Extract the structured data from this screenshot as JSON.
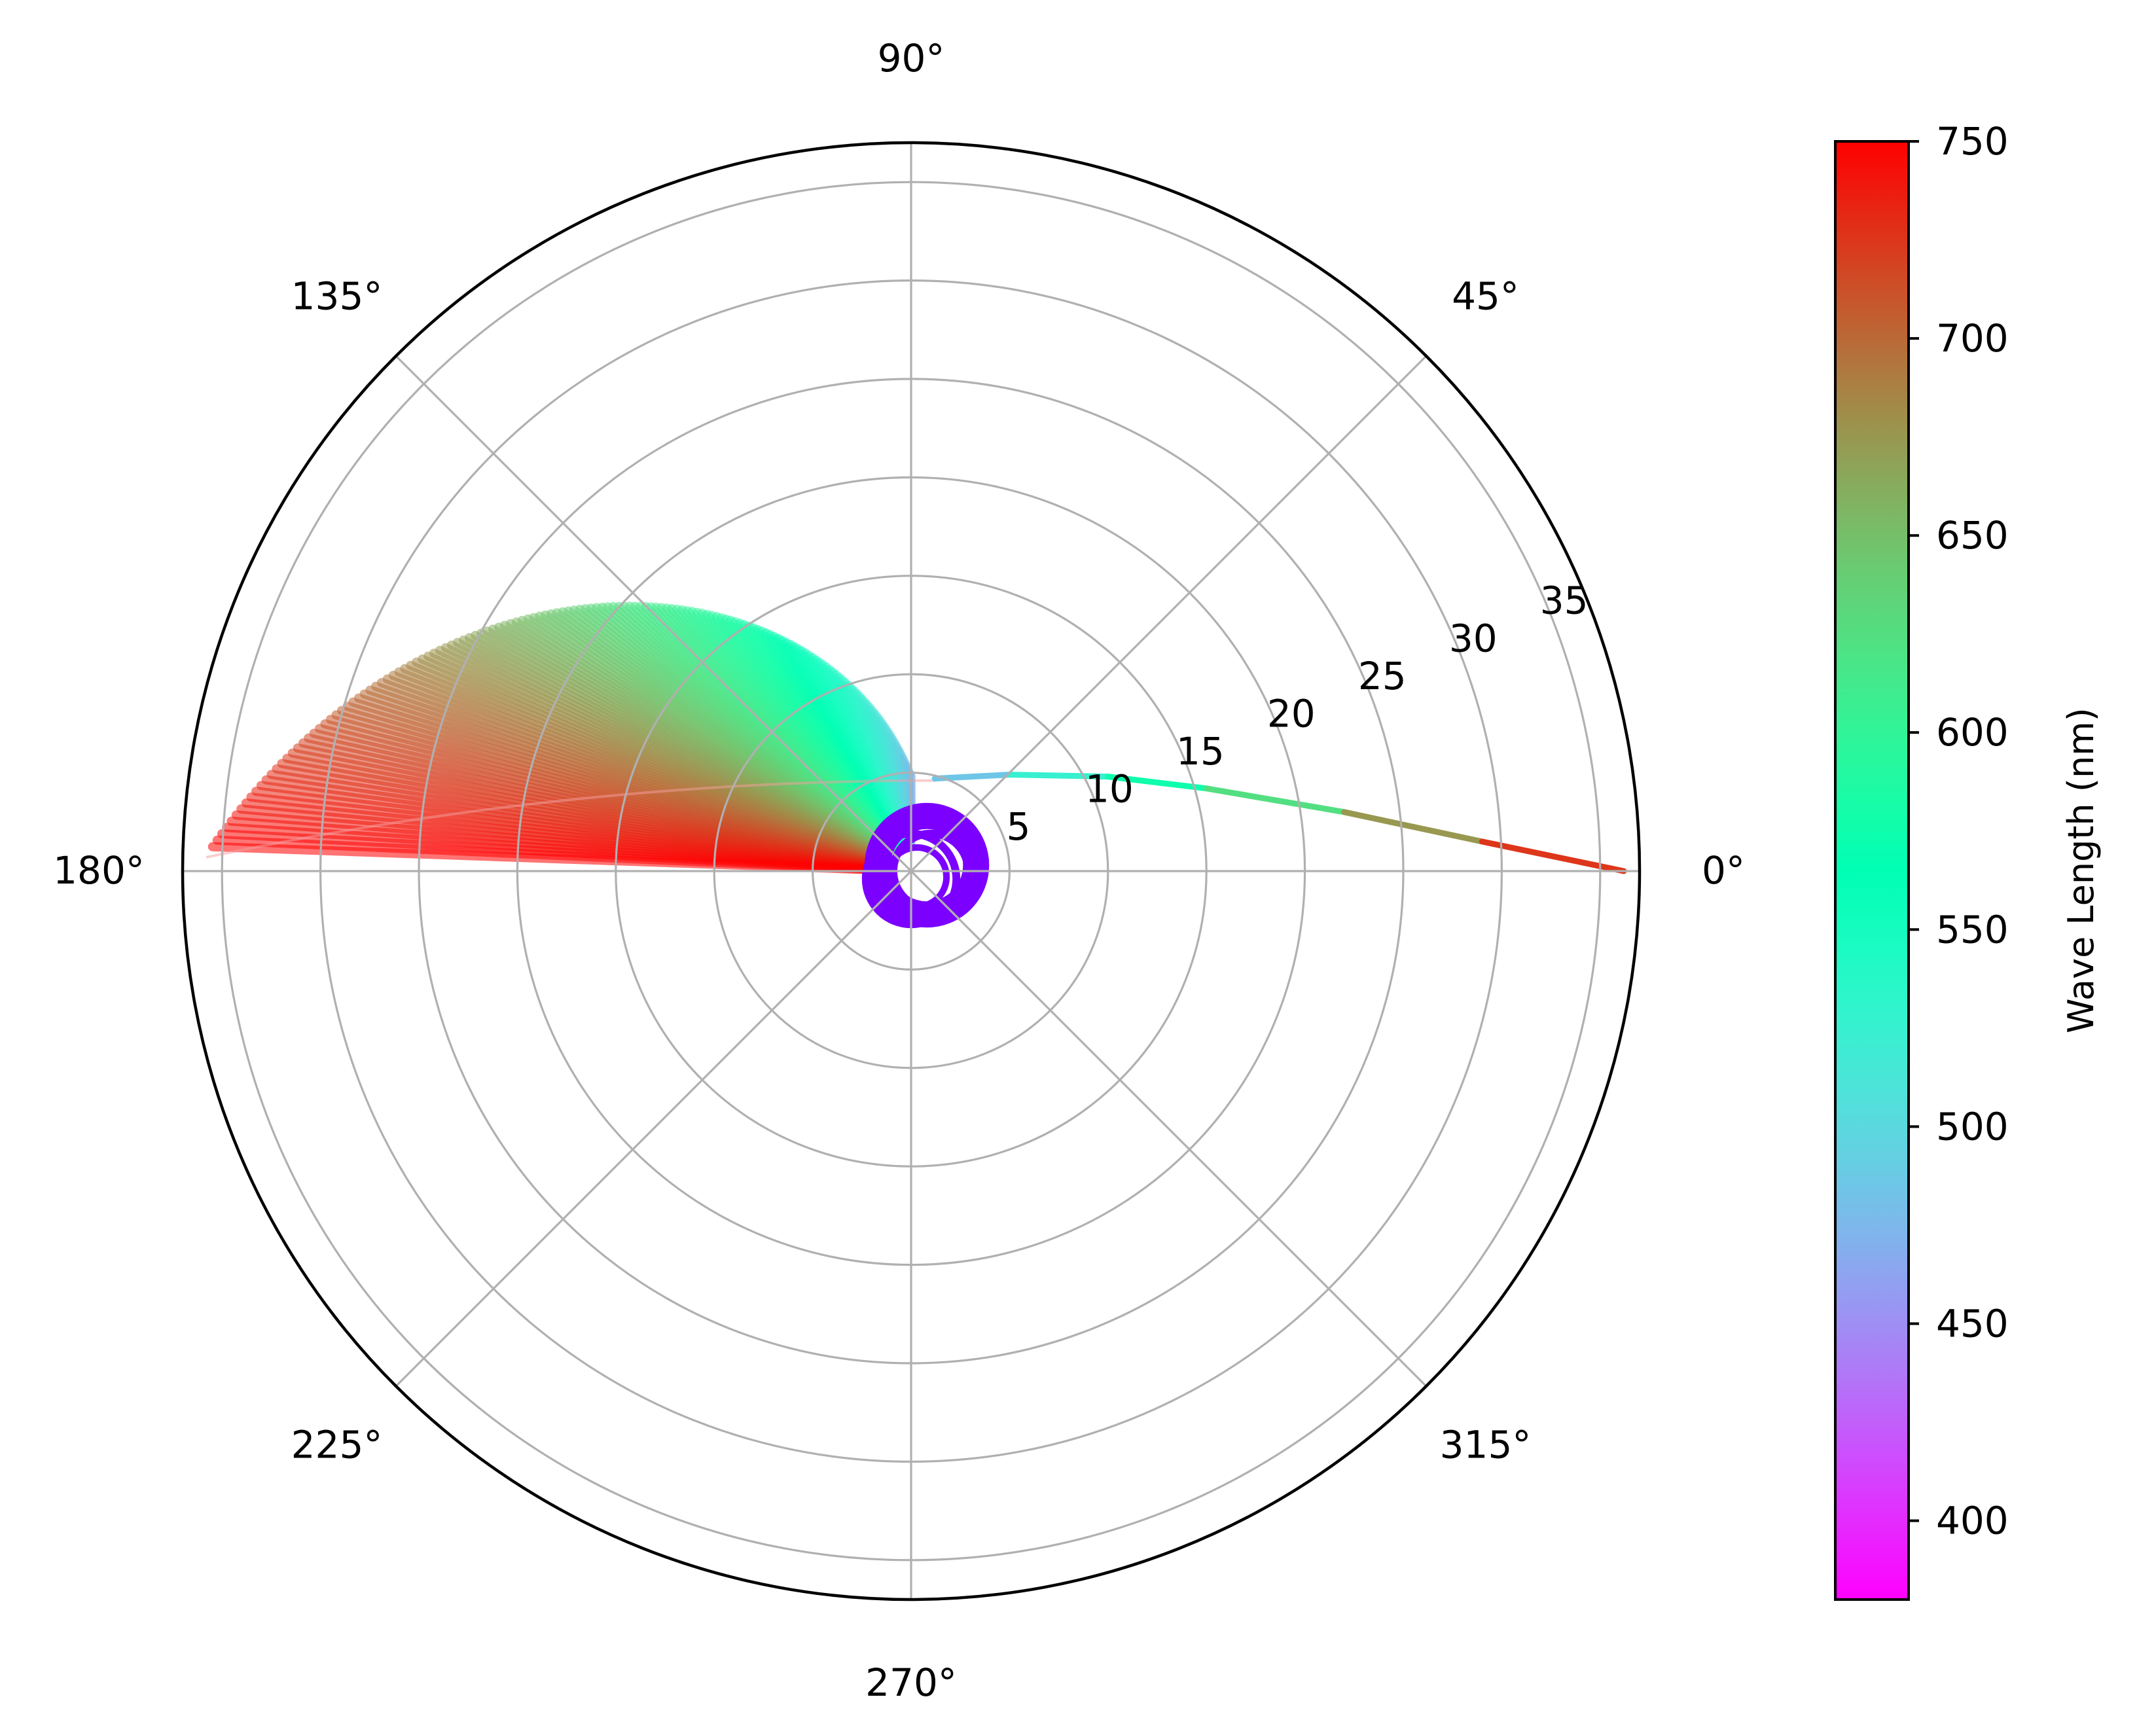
{
  "chart_data": {
    "type": "polar",
    "title": "",
    "theta_tick_labels": [
      "0°",
      "45°",
      "90°",
      "135°",
      "180°",
      "225°",
      "270°",
      "315°"
    ],
    "theta_ticks_deg": [
      0,
      45,
      90,
      135,
      180,
      225,
      270,
      315
    ],
    "r_ticks": [
      5,
      10,
      15,
      20,
      25,
      30,
      35
    ],
    "r_tick_labels": [
      "5",
      "10",
      "15",
      "20",
      "25",
      "30",
      "35"
    ],
    "r_label_angle_deg": 22.5,
    "rlim": [
      0,
      37
    ],
    "grid": true,
    "colorbar": {
      "label": "Wave Length (nm)",
      "colormap": "rainbow",
      "range": [
        380,
        750
      ],
      "ticks": [
        400,
        450,
        500,
        550,
        600,
        650,
        700,
        750
      ],
      "tick_labels": [
        "400",
        "450",
        "500",
        "550",
        "600",
        "650",
        "700",
        "750"
      ]
    },
    "series": {
      "wavelength_start": 380,
      "wavelength_end": 750,
      "ray_sweep_deg": [
        90,
        178
      ],
      "ray_radius_range": [
        4.8,
        35.5
      ],
      "curve_points": [
        {
          "wavelength": 470,
          "x": 1.2,
          "y": 4.7
        },
        {
          "wavelength": 500,
          "x": 5.0,
          "y": 4.9
        },
        {
          "wavelength": 550,
          "x": 10.0,
          "y": 4.8
        },
        {
          "wavelength": 600,
          "x": 15.0,
          "y": 4.2
        },
        {
          "wavelength": 650,
          "x": 22.0,
          "y": 3.0
        },
        {
          "wavelength": 700,
          "x": 29.0,
          "y": 1.5
        },
        {
          "wavelength": 750,
          "x": 36.2,
          "y": 0.0
        }
      ],
      "violet_loops": [
        {
          "center_x": 0.8,
          "center_y": 0.3,
          "radius": 2.5
        },
        {
          "center_x": 0.0,
          "center_y": -0.4,
          "radius": 2.3
        },
        {
          "center_x": 1.0,
          "center_y": 0.0,
          "radius": 1.9
        }
      ]
    }
  }
}
